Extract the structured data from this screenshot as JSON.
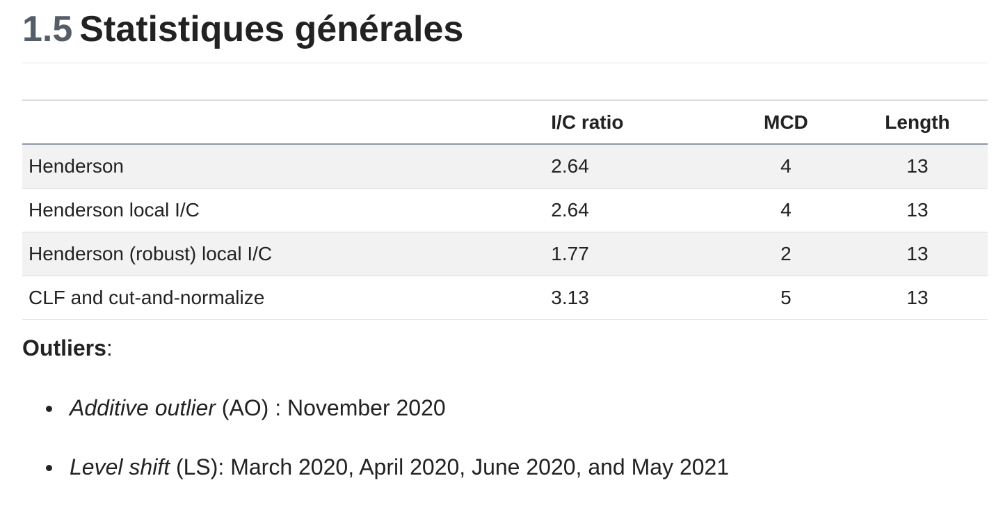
{
  "section": {
    "number": "1.5",
    "title": "Statistiques générales"
  },
  "table": {
    "headers": [
      "",
      "I/C ratio",
      "MCD",
      "Length"
    ],
    "rows": [
      {
        "name": "Henderson",
        "ic_ratio": "2.64",
        "mcd": "4",
        "length": "13"
      },
      {
        "name": "Henderson local I/C",
        "ic_ratio": "2.64",
        "mcd": "4",
        "length": "13"
      },
      {
        "name": "Henderson (robust) local I/C",
        "ic_ratio": "1.77",
        "mcd": "2",
        "length": "13"
      },
      {
        "name": "CLF and cut-and-normalize",
        "ic_ratio": "3.13",
        "mcd": "5",
        "length": "13"
      }
    ]
  },
  "outliers": {
    "title": "Outliers",
    "colon": ":",
    "items": [
      {
        "term": "Additive outlier",
        "text": " (AO) : November 2020"
      },
      {
        "term": "Level shift",
        "text": " (LS): March 2020, April 2020, June 2020, and May 2021"
      }
    ]
  }
}
